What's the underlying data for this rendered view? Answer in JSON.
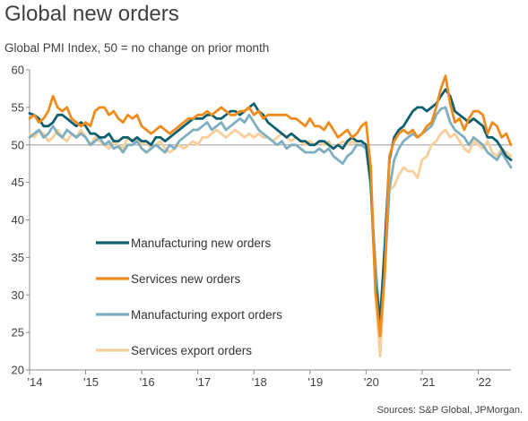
{
  "chart_data": {
    "type": "line",
    "title": "Global new orders",
    "subtitle": "Global PMI Index, 50 = no change on prior month",
    "source": "Sources: S&P Global, JPMorgan.",
    "xlabel": "",
    "ylabel": "",
    "ylim": [
      20,
      60
    ],
    "y_ticks": [
      "20",
      "25",
      "30",
      "35",
      "40",
      "45",
      "50",
      "55",
      "60"
    ],
    "x_ticks": [
      "'14",
      "'15",
      "'16",
      "'17",
      "'18",
      "'19",
      "'20",
      "'21",
      "'22"
    ],
    "x_start": "2014-01",
    "x_end": "2022-08",
    "reference_line": 50,
    "grid": false,
    "legend_position": "lower-left",
    "colors": {
      "manufacturing_new_orders": "#0f5f6e",
      "services_new_orders": "#f08c1e",
      "manufacturing_export_orders": "#7fafbe",
      "services_export_orders": "#f7cf9b"
    },
    "series": [
      {
        "key": "services_export_orders",
        "name": "Services export orders",
        "values": [
          51.5,
          51.0,
          52.0,
          51.5,
          50.5,
          51.0,
          52.0,
          51.0,
          50.5,
          51.5,
          51.0,
          52.0,
          51.0,
          50.0,
          51.0,
          50.5,
          50.0,
          49.5,
          50.5,
          50.0,
          49.5,
          51.0,
          50.5,
          51.0,
          50.0,
          50.5,
          49.5,
          50.0,
          50.5,
          49.5,
          49.0,
          49.5,
          50.0,
          49.5,
          50.0,
          50.5,
          50.0,
          51.0,
          51.0,
          51.5,
          52.0,
          51.5,
          51.0,
          51.5,
          52.0,
          51.5,
          51.0,
          51.5,
          51.0,
          51.5,
          51.0,
          51.0,
          50.5,
          51.0,
          51.5,
          51.0,
          50.5,
          51.0,
          50.5,
          50.0,
          50.5,
          50.0,
          50.5,
          50.0,
          50.5,
          49.5,
          50.0,
          50.5,
          50.0,
          50.5,
          50.0,
          50.0,
          50.0,
          46.0,
          30.0,
          21.8,
          33.0,
          44.0,
          44.5,
          46.0,
          47.0,
          46.5,
          46.5,
          45.6,
          48.0,
          48.5,
          50.0,
          50.5,
          51.5,
          52.0,
          51.0,
          51.5,
          50.5,
          49.5,
          49.0,
          50.5,
          50.0,
          49.5,
          50.5,
          49.0,
          48.5,
          49.5,
          49.0,
          48.5
        ]
      },
      {
        "key": "manufacturing_export_orders",
        "name": "Manufacturing export orders",
        "values": [
          51.0,
          51.5,
          52.0,
          51.0,
          51.5,
          52.5,
          51.5,
          51.0,
          52.0,
          51.5,
          51.0,
          51.5,
          51.0,
          50.0,
          50.5,
          51.0,
          50.0,
          50.5,
          49.5,
          49.8,
          49.0,
          50.0,
          50.0,
          50.5,
          49.5,
          49.0,
          49.5,
          50.0,
          49.5,
          49.0,
          50.0,
          49.5,
          50.5,
          51.0,
          51.5,
          52.0,
          52.0,
          52.5,
          53.0,
          52.0,
          52.5,
          53.0,
          52.0,
          52.5,
          53.0,
          53.5,
          53.0,
          54.0,
          53.0,
          52.0,
          51.5,
          51.0,
          50.5,
          50.0,
          50.5,
          49.5,
          50.0,
          50.0,
          49.5,
          49.0,
          49.0,
          49.0,
          49.5,
          49.0,
          49.5,
          48.5,
          48.0,
          47.5,
          48.5,
          49.0,
          50.0,
          50.0,
          49.5,
          44.5,
          34.0,
          26.5,
          33.5,
          44.0,
          48.0,
          49.5,
          50.5,
          51.0,
          51.5,
          51.0,
          51.5,
          52.0,
          52.5,
          54.0,
          54.8,
          55.0,
          53.0,
          52.0,
          51.5,
          51.0,
          50.0,
          51.0,
          50.5,
          50.0,
          49.0,
          48.5,
          48.0,
          49.0,
          48.0,
          47.0
        ]
      },
      {
        "key": "manufacturing_new_orders",
        "name": "Manufacturing new orders",
        "values": [
          54.2,
          54.0,
          53.5,
          52.5,
          52.5,
          53.0,
          54.0,
          54.0,
          53.5,
          53.0,
          52.5,
          53.0,
          52.5,
          51.5,
          51.5,
          51.0,
          51.0,
          51.5,
          50.5,
          50.5,
          51.0,
          51.0,
          50.5,
          51.0,
          50.5,
          50.5,
          50.0,
          51.0,
          51.0,
          50.5,
          51.0,
          51.5,
          52.0,
          52.5,
          53.0,
          53.5,
          53.5,
          53.5,
          54.0,
          54.0,
          53.5,
          53.5,
          54.0,
          54.5,
          54.5,
          54.0,
          54.5,
          55.0,
          55.5,
          54.5,
          54.0,
          53.0,
          52.5,
          52.0,
          51.5,
          51.0,
          51.5,
          51.0,
          50.5,
          50.5,
          50.0,
          50.0,
          50.5,
          50.5,
          50.0,
          49.5,
          50.0,
          49.5,
          50.5,
          51.0,
          50.5,
          50.5,
          50.0,
          45.0,
          31.5,
          26.5,
          36.5,
          48.0,
          51.0,
          52.0,
          52.5,
          53.5,
          54.5,
          55.0,
          55.0,
          54.5,
          55.0,
          55.5,
          56.5,
          57.4,
          56.5,
          54.5,
          54.0,
          53.5,
          53.0,
          53.5,
          53.0,
          52.5,
          51.0,
          51.0,
          50.5,
          49.5,
          48.5,
          48.0
        ]
      },
      {
        "key": "services_new_orders",
        "name": "Services new orders",
        "values": [
          53.5,
          54.0,
          53.0,
          53.5,
          54.5,
          56.5,
          55.0,
          54.5,
          55.0,
          53.5,
          53.0,
          52.5,
          53.0,
          52.5,
          54.5,
          55.0,
          55.0,
          54.0,
          54.5,
          53.5,
          53.0,
          54.0,
          53.5,
          54.0,
          52.5,
          52.0,
          51.5,
          52.0,
          52.5,
          52.0,
          51.5,
          52.0,
          52.5,
          53.0,
          53.5,
          53.5,
          54.0,
          54.0,
          54.5,
          54.0,
          54.5,
          55.0,
          54.5,
          54.0,
          54.0,
          54.5,
          54.5,
          55.0,
          54.0,
          54.5,
          53.5,
          54.0,
          54.0,
          54.0,
          54.0,
          54.0,
          53.5,
          53.5,
          53.0,
          52.5,
          53.5,
          52.5,
          52.5,
          52.0,
          53.0,
          52.0,
          51.0,
          51.5,
          52.0,
          51.0,
          51.5,
          52.5,
          53.0,
          47.0,
          30.5,
          24.5,
          33.0,
          48.5,
          50.5,
          51.5,
          52.0,
          51.5,
          52.0,
          51.0,
          51.5,
          52.5,
          53.0,
          55.0,
          57.5,
          59.2,
          55.5,
          53.0,
          53.5,
          52.0,
          53.5,
          54.5,
          54.5,
          54.0,
          51.5,
          53.0,
          52.5,
          51.0,
          51.5,
          50.0
        ]
      }
    ],
    "legend": [
      {
        "key": "manufacturing_new_orders",
        "label": "Manufacturing new orders"
      },
      {
        "key": "services_new_orders",
        "label": "Services new orders"
      },
      {
        "key": "manufacturing_export_orders",
        "label": "Manufacturing export orders"
      },
      {
        "key": "services_export_orders",
        "label": "Services export orders"
      }
    ]
  }
}
